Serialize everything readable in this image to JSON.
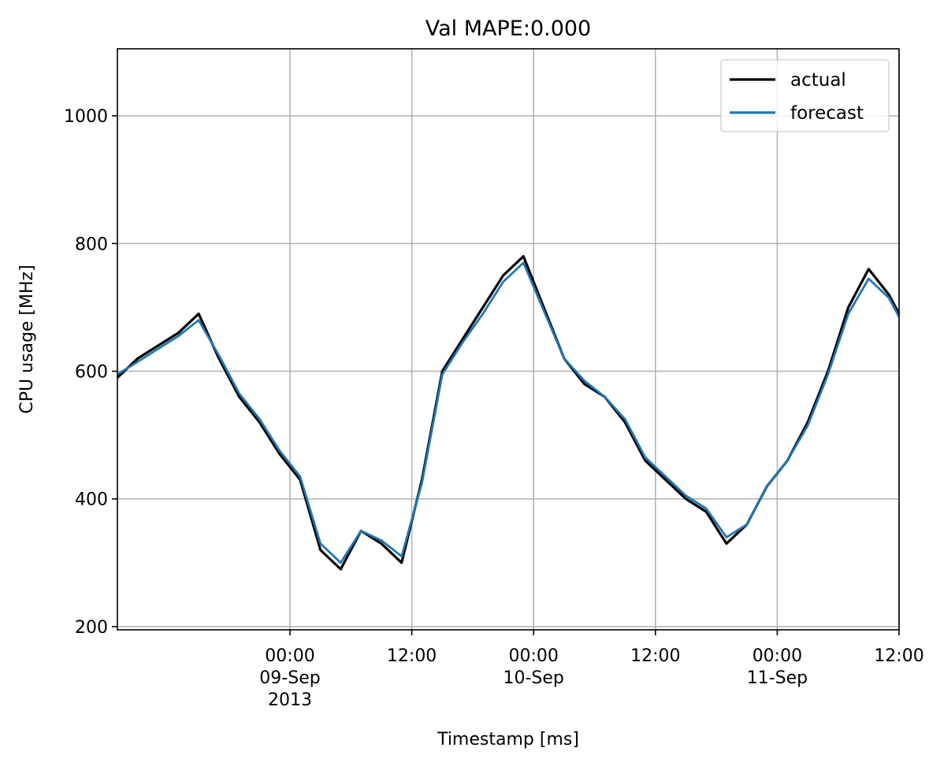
{
  "chart_data": {
    "type": "line",
    "title": "Val MAPE:0.000",
    "xlabel": "Timestamp [ms]",
    "ylabel": "CPU usage [MHz]",
    "xlim": [
      "2013-09-08 07:00",
      "2013-09-11 12:00"
    ],
    "ylim": [
      195,
      1105
    ],
    "yticks": [
      200,
      400,
      600,
      800,
      1000
    ],
    "xticks": [
      {
        "at": "2013-09-09 00:00",
        "lines": [
          "00:00",
          "09-Sep",
          "2013"
        ]
      },
      {
        "at": "2013-09-09 12:00",
        "lines": [
          "12:00"
        ]
      },
      {
        "at": "2013-09-10 00:00",
        "lines": [
          "00:00",
          "10-Sep"
        ]
      },
      {
        "at": "2013-09-10 12:00",
        "lines": [
          "12:00"
        ]
      },
      {
        "at": "2013-09-11 00:00",
        "lines": [
          "00:00",
          "11-Sep"
        ]
      },
      {
        "at": "2013-09-11 12:00",
        "lines": [
          "12:00"
        ]
      }
    ],
    "grid": true,
    "legend_position": "top-right",
    "x": [
      "2013-09-08 07:00",
      "2013-09-08 09:00",
      "2013-09-08 11:00",
      "2013-09-08 13:00",
      "2013-09-08 15:00",
      "2013-09-08 17:00",
      "2013-09-08 19:00",
      "2013-09-08 21:00",
      "2013-09-08 23:00",
      "2013-09-09 01:00",
      "2013-09-09 03:00",
      "2013-09-09 05:00",
      "2013-09-09 07:00",
      "2013-09-09 09:00",
      "2013-09-09 11:00",
      "2013-09-09 13:00",
      "2013-09-09 15:00",
      "2013-09-09 17:00",
      "2013-09-09 19:00",
      "2013-09-09 21:00",
      "2013-09-09 23:00",
      "2013-09-10 01:00",
      "2013-09-10 03:00",
      "2013-09-10 05:00",
      "2013-09-10 07:00",
      "2013-09-10 09:00",
      "2013-09-10 11:00",
      "2013-09-10 13:00",
      "2013-09-10 15:00",
      "2013-09-10 17:00",
      "2013-09-10 19:00",
      "2013-09-10 21:00",
      "2013-09-10 23:00",
      "2013-09-11 01:00",
      "2013-09-11 03:00",
      "2013-09-11 05:00",
      "2013-09-11 07:00",
      "2013-09-11 09:00",
      "2013-09-11 11:00",
      "2013-09-11 12:00"
    ],
    "series": [
      {
        "name": "actual",
        "color": "#000000",
        "values": [
          590,
          620,
          640,
          660,
          690,
          620,
          560,
          520,
          470,
          430,
          320,
          290,
          350,
          330,
          300,
          430,
          600,
          650,
          700,
          750,
          780,
          700,
          620,
          580,
          560,
          520,
          460,
          430,
          400,
          380,
          330,
          360,
          420,
          460,
          520,
          600,
          700,
          760,
          720,
          690
        ]
      },
      {
        "name": "forecast",
        "color": "#1f77b4",
        "values": [
          595,
          615,
          635,
          655,
          680,
          625,
          565,
          525,
          475,
          435,
          330,
          300,
          350,
          335,
          310,
          425,
          595,
          645,
          690,
          740,
          770,
          695,
          620,
          585,
          560,
          525,
          465,
          435,
          405,
          385,
          340,
          360,
          420,
          460,
          515,
          595,
          690,
          745,
          715,
          685
        ]
      }
    ]
  }
}
